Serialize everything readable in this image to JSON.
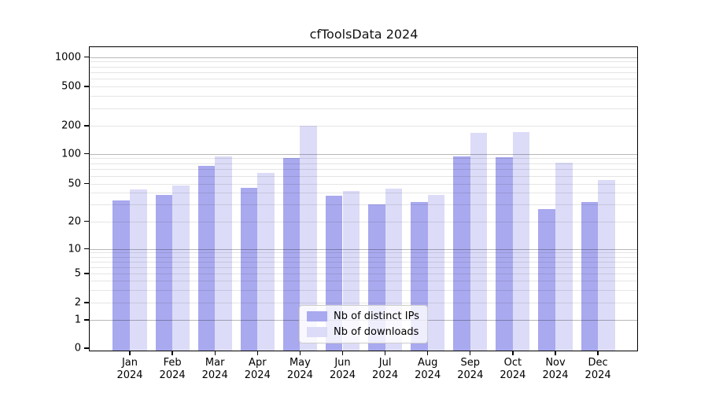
{
  "title": "cfToolsData 2024",
  "chart_data": {
    "type": "bar",
    "title": "cfToolsData 2024",
    "categories": [
      "Jan",
      "Feb",
      "Mar",
      "Apr",
      "May",
      "Jun",
      "Jul",
      "Aug",
      "Sep",
      "Oct",
      "Nov",
      "Dec"
    ],
    "category_year": "2024",
    "series": [
      {
        "name": "Nb of distinct IPs",
        "color": "#a9a9ef",
        "values": [
          33,
          38,
          76,
          45,
          90,
          37,
          30,
          32,
          94,
          93,
          27,
          32
        ]
      },
      {
        "name": "Nb of downloads",
        "color": "#dcdcf8",
        "values": [
          43,
          48,
          94,
          64,
          200,
          42,
          44,
          38,
          169,
          172,
          82,
          54
        ]
      }
    ],
    "yscale": "symlog",
    "yticks": [
      0,
      1,
      2,
      5,
      10,
      20,
      50,
      100,
      200,
      500,
      1000
    ],
    "ylim": [
      0,
      1000
    ],
    "xlabel": "",
    "ylabel": "",
    "grid": true,
    "legend_position": "lower center"
  }
}
